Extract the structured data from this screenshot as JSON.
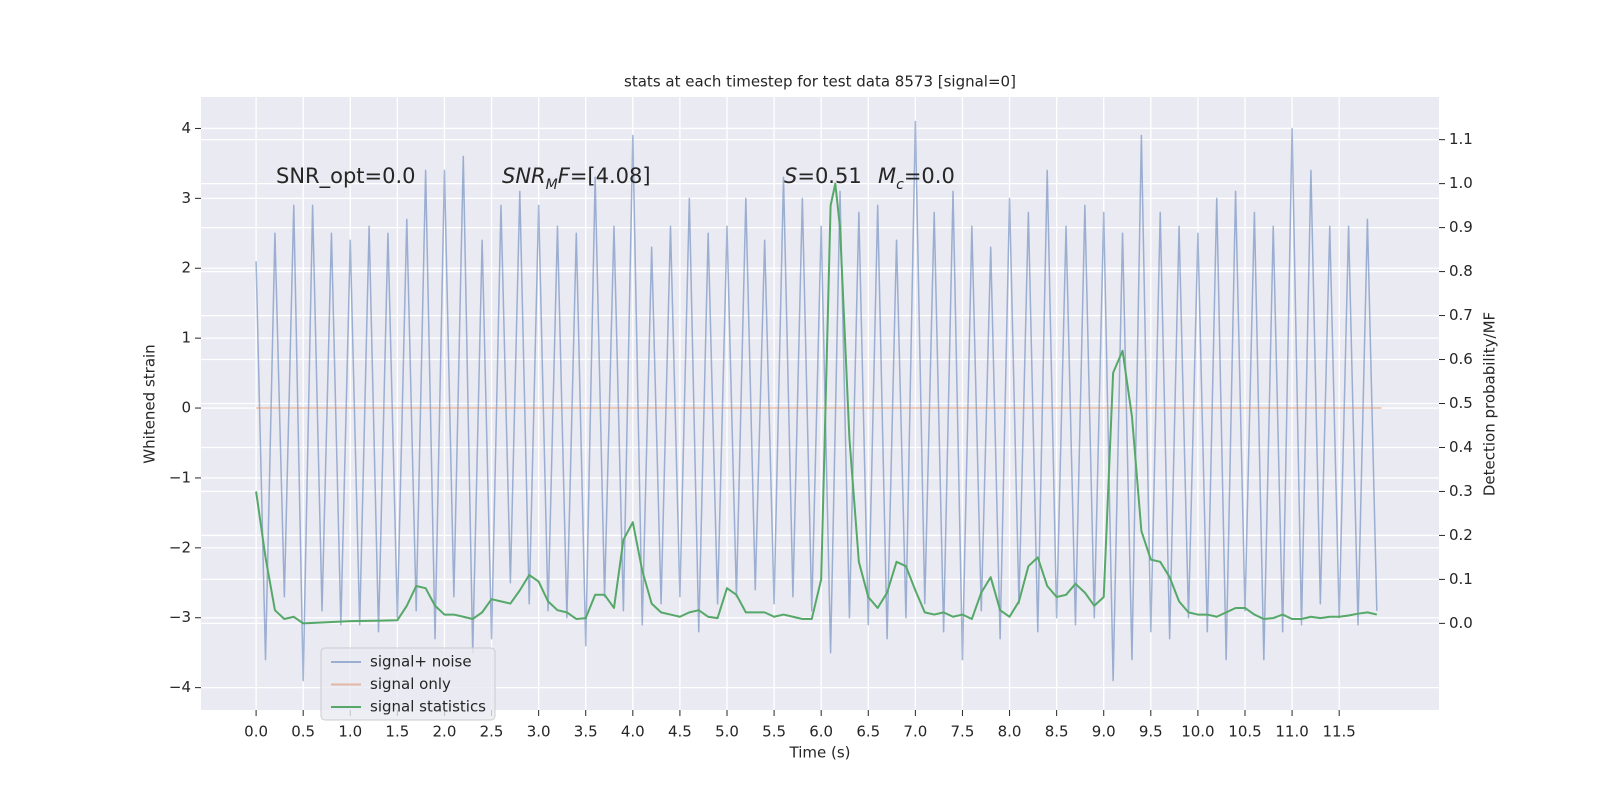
{
  "chart_data": {
    "type": "line",
    "title": "stats at each timestep for test data 8573 [signal=0]",
    "xlabel": "Time (s)",
    "ylabel": "Whitened strain",
    "y2label": "Detection probability/MF",
    "grid": true,
    "legend": "lower left",
    "xlim": [
      -0.585,
      12.56
    ],
    "ylim": [
      -4.32,
      4.45
    ],
    "y2lim": [
      -0.197,
      1.197
    ],
    "xticks": [
      {
        "value": 0,
        "label": "0.0"
      },
      0.5,
      {
        "value": 1,
        "label": "1.0"
      },
      1.5,
      {
        "value": 2,
        "label": "2.0"
      },
      2.5,
      {
        "value": 3,
        "label": "3.0"
      },
      3.5,
      {
        "value": 4,
        "label": "4.0"
      },
      4.5,
      {
        "value": 5,
        "label": "5.0"
      },
      5.5,
      {
        "value": 6,
        "label": "6.0"
      },
      6.5,
      {
        "value": 7,
        "label": "7.0"
      },
      7.5,
      {
        "value": 8,
        "label": "8.0"
      },
      8.5,
      {
        "value": 9,
        "label": "9.0"
      },
      9.5,
      {
        "value": 10,
        "label": "10.0"
      },
      10.5,
      {
        "value": 11,
        "label": "11.0"
      },
      11.5
    ],
    "yticks": [
      {
        "value": -4,
        "label": "−4"
      },
      {
        "value": -3,
        "label": "−3"
      },
      {
        "value": -2,
        "label": "−2"
      },
      {
        "value": -1,
        "label": "−1"
      },
      0,
      1,
      2,
      3,
      4
    ],
    "y2ticks": [
      {
        "value": 0,
        "label": "0.0"
      },
      0.1,
      0.2,
      0.3,
      0.4,
      0.5,
      0.6,
      0.7,
      0.8,
      0.9,
      {
        "value": 1,
        "label": "1.0"
      },
      1.1
    ],
    "annotations": [
      {
        "runs": [
          {
            "text": "SNR_opt=0.0",
            "style": "normal"
          }
        ]
      },
      {
        "runs": [
          {
            "text": "SNR",
            "style": "italic"
          },
          {
            "text": "M",
            "style": "sub"
          },
          {
            "text": "F",
            "style": "italic"
          },
          {
            "text": "=[4.08]",
            "style": "normal"
          }
        ]
      },
      {
        "runs": [
          {
            "text": "S",
            "style": "italic"
          },
          {
            "text": "=0.51",
            "style": "normal"
          }
        ]
      },
      {
        "runs": [
          {
            "text": "M",
            "style": "italic"
          },
          {
            "text": "c",
            "style": "sub"
          },
          {
            "text": "=0.0",
            "style": "normal"
          }
        ]
      }
    ],
    "series": [
      {
        "name": "signal+ noise",
        "color": "#4c72b0",
        "axis": "y",
        "x": [
          0.0,
          0.1,
          0.2,
          0.3,
          0.4,
          0.5,
          0.6,
          0.7,
          0.8,
          0.9,
          1.0,
          1.1,
          1.2,
          1.3,
          1.4,
          1.5,
          1.6,
          1.7,
          1.8,
          1.9,
          2.0,
          2.1,
          2.2,
          2.3,
          2.4,
          2.5,
          2.6,
          2.7,
          2.8,
          2.9,
          3.0,
          3.1,
          3.2,
          3.3,
          3.4,
          3.5,
          3.6,
          3.7,
          3.8,
          3.9,
          4.0,
          4.1,
          4.2,
          4.3,
          4.4,
          4.5,
          4.6,
          4.7,
          4.8,
          4.9,
          5.0,
          5.1,
          5.2,
          5.3,
          5.4,
          5.5,
          5.6,
          5.7,
          5.8,
          5.9,
          6.0,
          6.1,
          6.2,
          6.3,
          6.4,
          6.5,
          6.6,
          6.7,
          6.8,
          6.9,
          7.0,
          7.1,
          7.2,
          7.3,
          7.4,
          7.5,
          7.6,
          7.7,
          7.8,
          7.9,
          8.0,
          8.1,
          8.2,
          8.3,
          8.4,
          8.5,
          8.6,
          8.7,
          8.8,
          8.9,
          9.0,
          9.1,
          9.2,
          9.3,
          9.4,
          9.5,
          9.6,
          9.7,
          9.8,
          9.9,
          10.0,
          10.1,
          10.2,
          10.3,
          10.4,
          10.5,
          10.6,
          10.7,
          10.8,
          10.9,
          11.0,
          11.1,
          11.2,
          11.3,
          11.4,
          11.5,
          11.6,
          11.7,
          11.8,
          11.9
        ],
        "values": [
          2.1,
          -3.6,
          2.5,
          -2.7,
          2.9,
          -3.9,
          2.9,
          -2.9,
          2.5,
          -3.1,
          2.4,
          -3.1,
          2.6,
          -3.2,
          2.5,
          -3.0,
          2.7,
          -2.9,
          3.4,
          -3.3,
          3.4,
          -2.7,
          3.6,
          -3.5,
          2.4,
          -3.3,
          2.9,
          -2.5,
          3.1,
          -2.8,
          2.9,
          -2.9,
          2.6,
          -3.0,
          2.5,
          -3.4,
          3.3,
          -2.7,
          2.6,
          -2.9,
          3.9,
          -3.1,
          2.3,
          -2.8,
          2.6,
          -2.7,
          3.0,
          -3.2,
          2.5,
          -2.8,
          2.6,
          -2.7,
          3.0,
          -2.6,
          2.4,
          -2.8,
          3.3,
          -2.7,
          3.0,
          -2.9,
          2.6,
          -3.5,
          3.1,
          -3.0,
          2.8,
          -3.1,
          2.9,
          -3.3,
          2.4,
          -3.0,
          4.1,
          -2.8,
          2.8,
          -3.2,
          3.1,
          -3.6,
          2.6,
          -2.9,
          2.3,
          -3.3,
          3.0,
          -2.8,
          2.8,
          -3.2,
          3.4,
          -3.0,
          2.6,
          -3.1,
          2.9,
          -3.0,
          2.8,
          -3.9,
          2.5,
          -3.6,
          3.9,
          -3.2,
          2.8,
          -3.3,
          2.6,
          -3.0,
          2.5,
          -3.2,
          3.0,
          -3.6,
          3.1,
          -2.9,
          2.8,
          -3.6,
          2.6,
          -3.2,
          4.0,
          -3.1,
          3.4,
          -2.8,
          2.6,
          -3.0,
          2.6,
          -3.1,
          2.7,
          -2.9
        ]
      },
      {
        "name": "signal only",
        "color": "#dd8452",
        "axis": "y",
        "x": [
          0.0,
          11.95
        ],
        "values": [
          0,
          0
        ]
      },
      {
        "name": "signal statistics",
        "color": "#55a868",
        "axis": "y2",
        "x": [
          0.0,
          0.1,
          0.2,
          0.3,
          0.4,
          0.5,
          1.0,
          1.5,
          1.6,
          1.7,
          1.8,
          1.9,
          2.0,
          2.1,
          2.2,
          2.3,
          2.4,
          2.5,
          2.6,
          2.7,
          2.8,
          2.9,
          3.0,
          3.1,
          3.2,
          3.3,
          3.4,
          3.5,
          3.6,
          3.7,
          3.8,
          3.9,
          4.0,
          4.1,
          4.2,
          4.3,
          4.4,
          4.5,
          4.6,
          4.7,
          4.8,
          4.9,
          5.0,
          5.1,
          5.2,
          5.3,
          5.4,
          5.5,
          5.6,
          5.7,
          5.8,
          5.9,
          6.0,
          6.1,
          6.15,
          6.2,
          6.3,
          6.4,
          6.5,
          6.6,
          6.7,
          6.8,
          6.9,
          7.0,
          7.1,
          7.2,
          7.3,
          7.4,
          7.5,
          7.6,
          7.7,
          7.8,
          7.9,
          8.0,
          8.1,
          8.2,
          8.3,
          8.4,
          8.5,
          8.6,
          8.7,
          8.8,
          8.9,
          9.0,
          9.1,
          9.2,
          9.3,
          9.4,
          9.5,
          9.6,
          9.7,
          9.8,
          9.9,
          10.0,
          10.1,
          10.2,
          10.3,
          10.4,
          10.5,
          10.6,
          10.7,
          10.8,
          10.9,
          11.0,
          11.1,
          11.2,
          11.3,
          11.4,
          11.5,
          11.6,
          11.7,
          11.8,
          11.9
        ],
        "values": [
          0.3,
          0.15,
          0.03,
          0.01,
          0.015,
          0.0,
          0.005,
          0.007,
          0.04,
          0.085,
          0.08,
          0.04,
          0.02,
          0.02,
          0.015,
          0.01,
          0.025,
          0.055,
          0.05,
          0.045,
          0.075,
          0.11,
          0.095,
          0.05,
          0.03,
          0.025,
          0.01,
          0.012,
          0.065,
          0.065,
          0.035,
          0.19,
          0.23,
          0.12,
          0.045,
          0.025,
          0.02,
          0.015,
          0.025,
          0.03,
          0.015,
          0.012,
          0.08,
          0.065,
          0.025,
          0.025,
          0.025,
          0.015,
          0.02,
          0.015,
          0.01,
          0.01,
          0.1,
          0.95,
          1.0,
          0.9,
          0.42,
          0.14,
          0.06,
          0.035,
          0.07,
          0.14,
          0.13,
          0.075,
          0.025,
          0.02,
          0.025,
          0.015,
          0.02,
          0.01,
          0.07,
          0.105,
          0.03,
          0.015,
          0.05,
          0.13,
          0.15,
          0.085,
          0.06,
          0.065,
          0.09,
          0.07,
          0.04,
          0.06,
          0.57,
          0.62,
          0.47,
          0.21,
          0.145,
          0.14,
          0.105,
          0.05,
          0.025,
          0.02,
          0.02,
          0.015,
          0.025,
          0.035,
          0.035,
          0.02,
          0.01,
          0.012,
          0.02,
          0.01,
          0.01,
          0.015,
          0.012,
          0.015,
          0.015,
          0.018,
          0.022,
          0.025,
          0.02
        ]
      }
    ]
  }
}
